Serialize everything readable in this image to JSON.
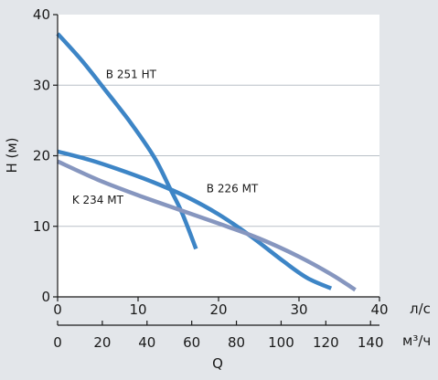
{
  "chart_data": {
    "type": "line",
    "ylabel": "H (м)",
    "xlabel": "Q",
    "x_unit_top": "л/с",
    "x_unit_bottom": "м³/ч",
    "xlim": [
      0,
      40
    ],
    "ylim": [
      0,
      40
    ],
    "x_ticks": [
      "0",
      "10",
      "20",
      "30",
      "40"
    ],
    "y_ticks": [
      "0",
      "10",
      "20",
      "30",
      "40"
    ],
    "x2_ticks": [
      "0",
      "20",
      "40",
      "60",
      "80",
      "100",
      "120",
      "140"
    ],
    "x2_values": [
      0,
      20,
      40,
      60,
      80,
      100,
      120,
      140
    ],
    "x2_factor": 3.6,
    "grid": "horizontal",
    "series": [
      {
        "name": "B 251 HT",
        "color": "#3d85c6",
        "label_at": [
          6,
          31
        ],
        "x": [
          0,
          3,
          6,
          9,
          12,
          14,
          15.5,
          17.2
        ],
        "y": [
          37.3,
          33.5,
          29.2,
          24.8,
          19.8,
          15.3,
          11.8,
          6.8
        ]
      },
      {
        "name": "B 226 MT",
        "color": "#3d85c6",
        "label_at": [
          18.5,
          14.8
        ],
        "x": [
          0,
          4,
          8,
          12,
          16,
          20,
          24,
          28,
          31,
          34
        ],
        "y": [
          20.6,
          19.4,
          17.9,
          16.2,
          14.2,
          11.7,
          8.6,
          5.1,
          2.7,
          1.2
        ]
      },
      {
        "name": "K 234 MT",
        "color": "#8696bf",
        "label_at": [
          1.8,
          13.2
        ],
        "x": [
          0,
          5,
          10,
          15,
          20,
          25,
          30,
          34,
          37
        ],
        "y": [
          19.2,
          16.6,
          14.4,
          12.4,
          10.4,
          8.3,
          5.7,
          3.2,
          1.0
        ]
      }
    ]
  }
}
